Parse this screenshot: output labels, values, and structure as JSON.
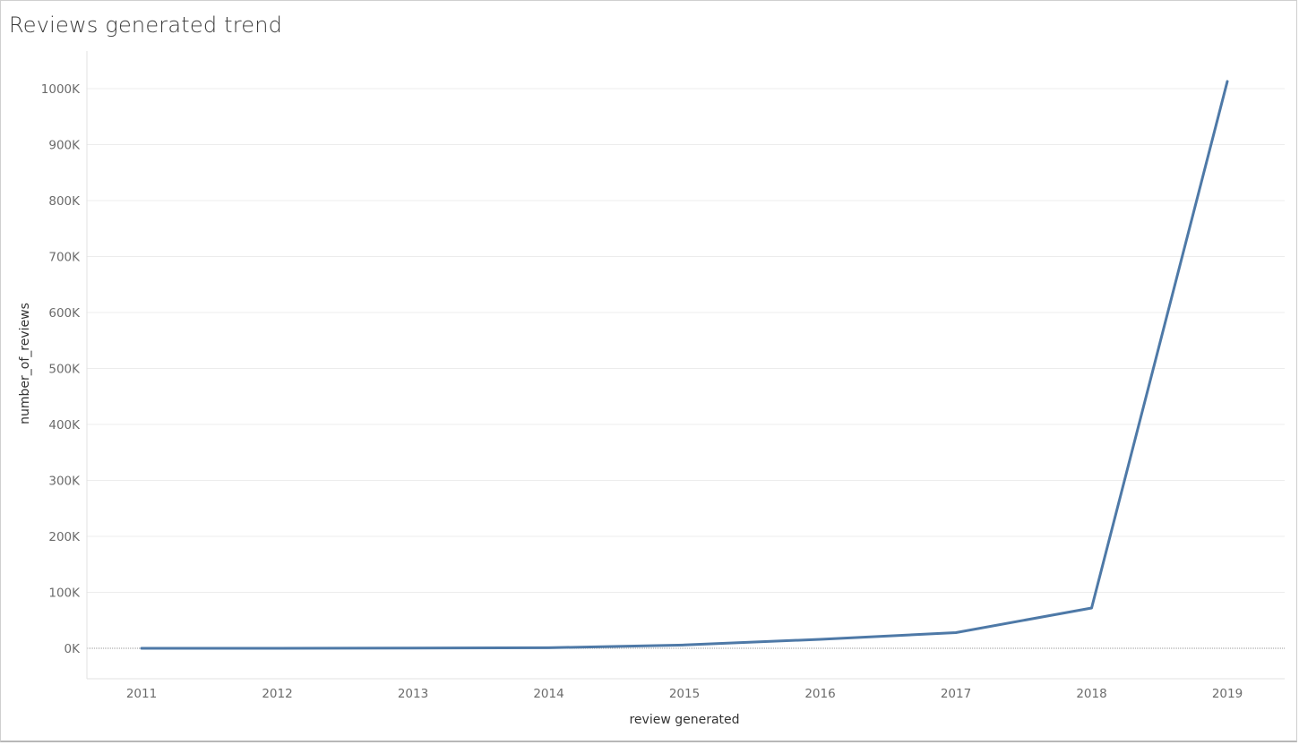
{
  "title": "Reviews generated trend",
  "chart_data": {
    "type": "line",
    "title": "Reviews generated trend",
    "xlabel": "review generated",
    "ylabel": "number_of_reviews",
    "x": [
      2011,
      2012,
      2013,
      2014,
      2015,
      2016,
      2017,
      2018,
      2019
    ],
    "x_tick_labels": [
      "2011",
      "2012",
      "2013",
      "2014",
      "2015",
      "2016",
      "2017",
      "2018",
      "2019"
    ],
    "y_ticks": [
      0,
      100000,
      200000,
      300000,
      400000,
      500000,
      600000,
      700000,
      800000,
      900000,
      1000000
    ],
    "y_tick_labels": [
      "0K",
      "100K",
      "200K",
      "300K",
      "400K",
      "500K",
      "600K",
      "700K",
      "800K",
      "900K",
      "1000K"
    ],
    "ylim": [
      -55000,
      1070000
    ],
    "series": [
      {
        "values": [
          0,
          0,
          300,
          1000,
          6000,
          16000,
          28000,
          72000,
          1013000
        ]
      }
    ],
    "grid": true,
    "colors": {
      "line": "#4e79a7",
      "gridline": "#ececec",
      "zero_line": "#9a9a9a"
    }
  }
}
